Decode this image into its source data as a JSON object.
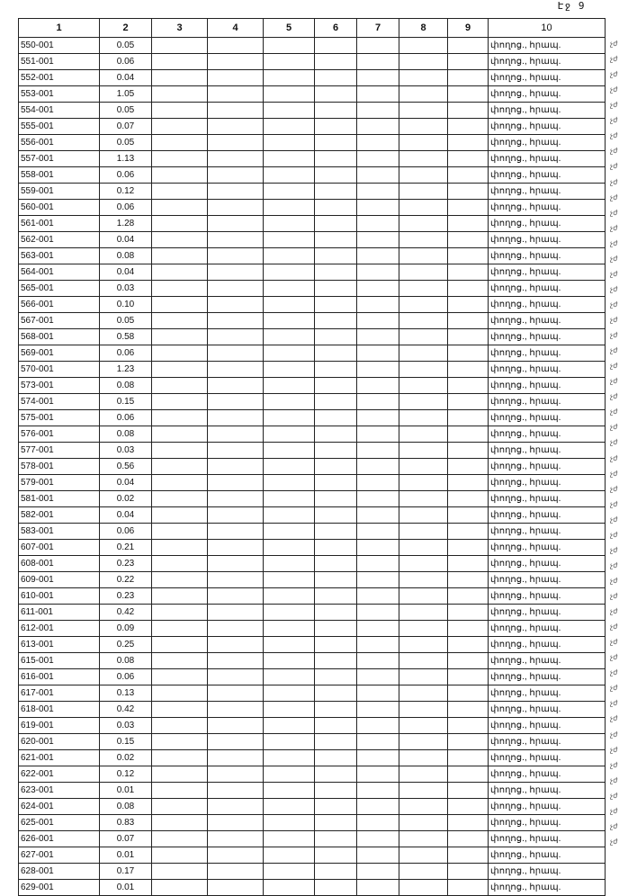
{
  "page_label": "Էջ 9",
  "headers": [
    "1",
    "2",
    "3",
    "4",
    "5",
    "6",
    "7",
    "8",
    "9",
    "10"
  ],
  "col10_text": "փողոց., հրապ.",
  "margin_mark": "չժ",
  "rows": [
    [
      "550-001",
      "0.05"
    ],
    [
      "551-001",
      "0.06"
    ],
    [
      "552-001",
      "0.04"
    ],
    [
      "553-001",
      "1.05"
    ],
    [
      "554-001",
      "0.05"
    ],
    [
      "555-001",
      "0.07"
    ],
    [
      "556-001",
      "0.05"
    ],
    [
      "557-001",
      "1.13"
    ],
    [
      "558-001",
      "0.06"
    ],
    [
      "559-001",
      "0.12"
    ],
    [
      "560-001",
      "0.06"
    ],
    [
      "561-001",
      "1.28"
    ],
    [
      "562-001",
      "0.04"
    ],
    [
      "563-001",
      "0.08"
    ],
    [
      "564-001",
      "0.04"
    ],
    [
      "565-001",
      "0.03"
    ],
    [
      "566-001",
      "0.10"
    ],
    [
      "567-001",
      "0.05"
    ],
    [
      "568-001",
      "0.58"
    ],
    [
      "569-001",
      "0.06"
    ],
    [
      "570-001",
      "1.23"
    ],
    [
      "573-001",
      "0.08"
    ],
    [
      "574-001",
      "0.15"
    ],
    [
      "575-001",
      "0.06"
    ],
    [
      "576-001",
      "0.08"
    ],
    [
      "577-001",
      "0.03"
    ],
    [
      "578-001",
      "0.56"
    ],
    [
      "579-001",
      "0.04"
    ],
    [
      "581-001",
      "0.02"
    ],
    [
      "582-001",
      "0.04"
    ],
    [
      "583-001",
      "0.06"
    ],
    [
      "607-001",
      "0.21"
    ],
    [
      "608-001",
      "0.23"
    ],
    [
      "609-001",
      "0.22"
    ],
    [
      "610-001",
      "0.23"
    ],
    [
      "611-001",
      "0.42"
    ],
    [
      "612-001",
      "0.09"
    ],
    [
      "613-001",
      "0.25"
    ],
    [
      "615-001",
      "0.08"
    ],
    [
      "616-001",
      "0.06"
    ],
    [
      "617-001",
      "0.13"
    ],
    [
      "618-001",
      "0.42"
    ],
    [
      "619-001",
      "0.03"
    ],
    [
      "620-001",
      "0.15"
    ],
    [
      "621-001",
      "0.02"
    ],
    [
      "622-001",
      "0.12"
    ],
    [
      "623-001",
      "0.01"
    ],
    [
      "624-001",
      "0.08"
    ],
    [
      "625-001",
      "0.83"
    ],
    [
      "626-001",
      "0.07"
    ],
    [
      "627-001",
      "0.01"
    ],
    [
      "628-001",
      "0.17"
    ],
    [
      "629-001",
      "0.01"
    ]
  ]
}
